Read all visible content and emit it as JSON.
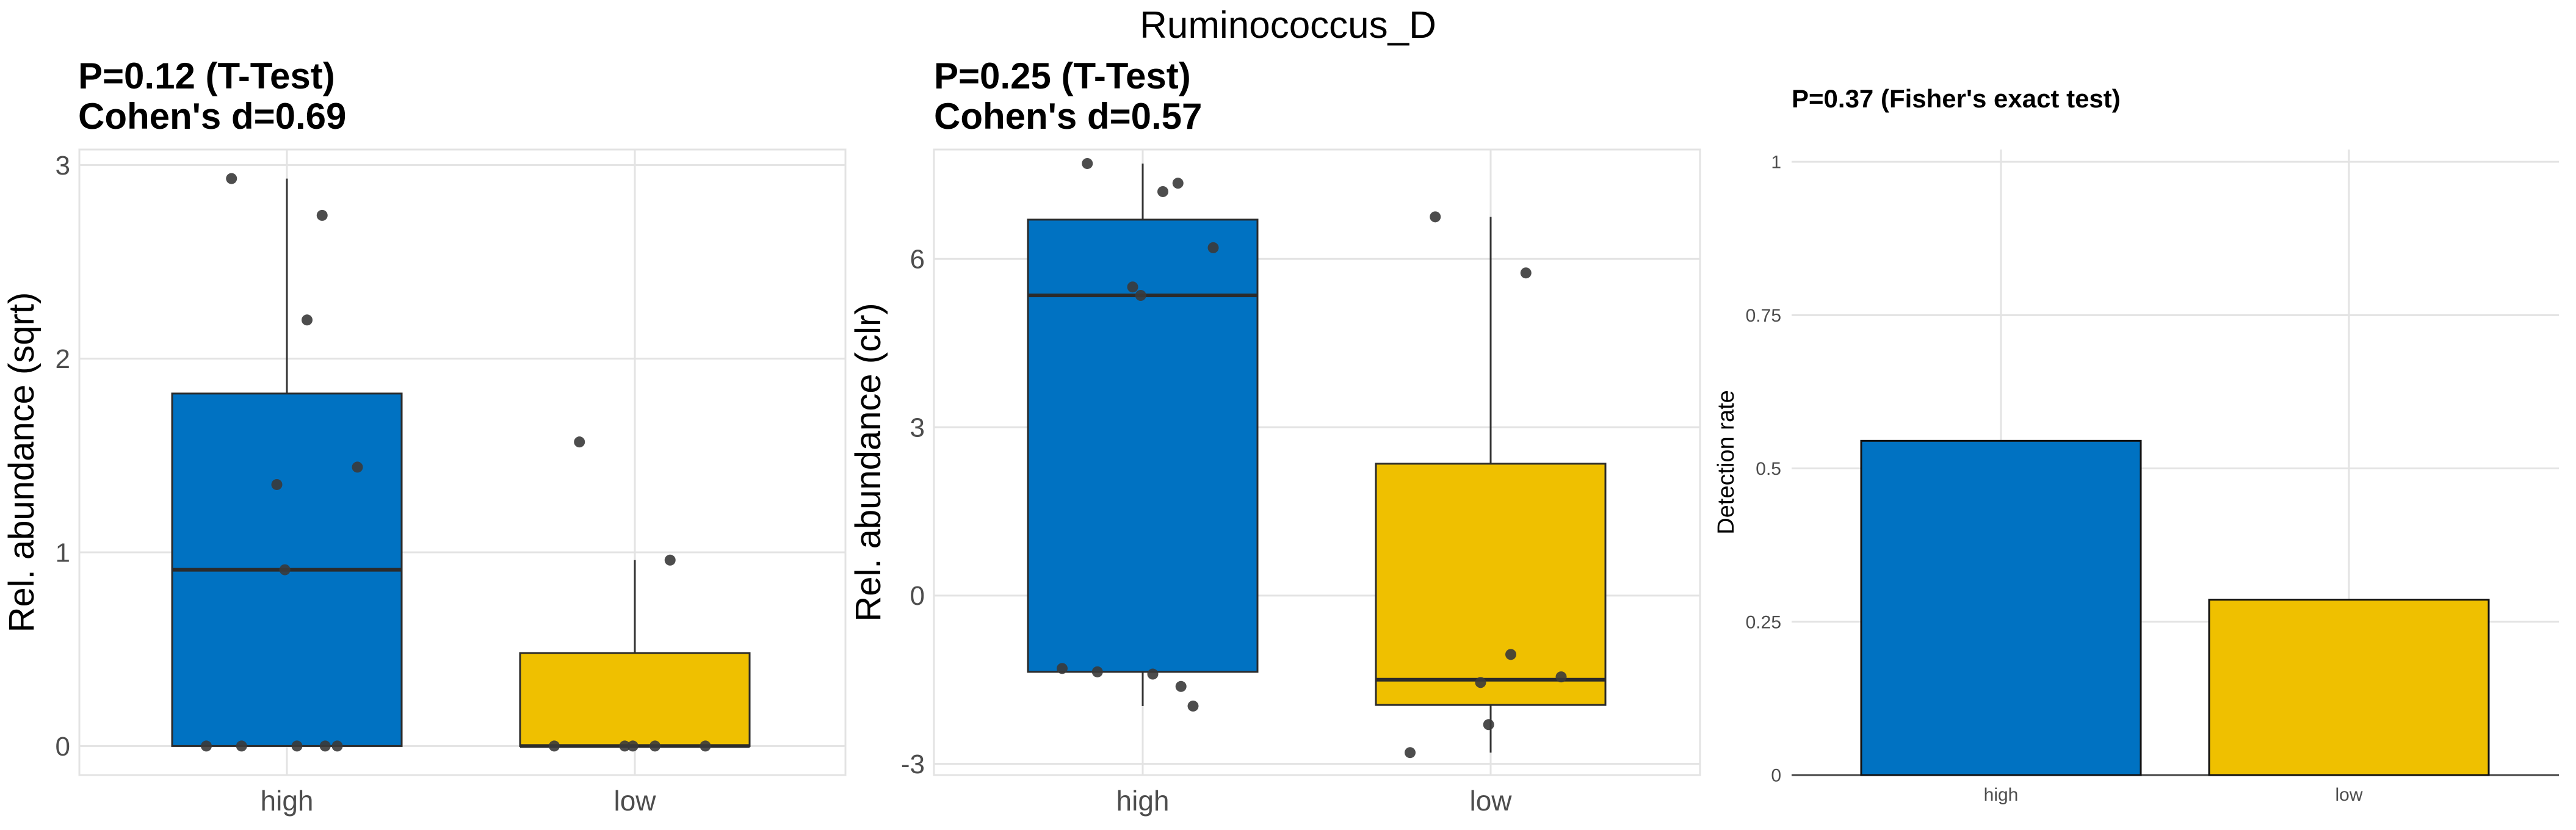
{
  "title": "Ruminococcus_D",
  "colors": {
    "high": "#0072C2",
    "low": "#EFC000",
    "grid": "#e3e3e3",
    "point": "#3a3a3a"
  },
  "chart_data": [
    {
      "type": "box",
      "title_lines": [
        "P=0.12 (T-Test)",
        "Cohen's d=0.69"
      ],
      "ylabel": "Rel. abundance (sqrt)",
      "ylim": [
        -0.15,
        3.08
      ],
      "yticks": [
        0,
        1,
        2,
        3
      ],
      "ytick_labels": [
        "0",
        "1",
        "2",
        "3"
      ],
      "categories": [
        "high",
        "low"
      ],
      "boxes": [
        {
          "group": "high",
          "min": 0,
          "q1": 0,
          "median": 0.91,
          "q3": 1.82,
          "max": 2.93
        },
        {
          "group": "low",
          "min": 0,
          "q1": 0,
          "median": 0.0,
          "q3": 0.48,
          "max": 0.96
        }
      ],
      "points": [
        {
          "group": "high",
          "values": [
            2.93,
            2.74,
            2.2,
            1.44,
            1.35,
            0.91,
            0,
            0,
            0,
            0,
            0
          ]
        },
        {
          "group": "low",
          "values": [
            1.57,
            0.96,
            0,
            0,
            0,
            0,
            0
          ]
        }
      ]
    },
    {
      "type": "box",
      "title_lines": [
        "P=0.25 (T-Test)",
        "Cohen's d=0.57"
      ],
      "ylabel": "Rel. abundance (clr)",
      "ylim": [
        -3.2,
        7.95
      ],
      "yticks": [
        -3,
        0,
        3,
        6
      ],
      "ytick_labels": [
        "-3",
        "0",
        "3",
        "6"
      ],
      "categories": [
        "high",
        "low"
      ],
      "boxes": [
        {
          "group": "high",
          "min": -1.97,
          "q1": -1.36,
          "median": 5.35,
          "q3": 6.7,
          "max": 7.7
        },
        {
          "group": "low",
          "min": -2.8,
          "q1": -1.95,
          "median": -1.5,
          "q3": 2.35,
          "max": 6.75
        }
      ],
      "points": [
        {
          "group": "high",
          "values": [
            7.7,
            7.35,
            7.2,
            6.2,
            5.5,
            5.35,
            -1.3,
            -1.36,
            -1.4,
            -1.62,
            -1.97
          ]
        },
        {
          "group": "low",
          "values": [
            6.75,
            5.75,
            -1.05,
            -1.45,
            -1.55,
            -2.3,
            -2.8
          ]
        }
      ]
    },
    {
      "type": "bar",
      "title_lines": [
        "P=0.37 (Fisher's exact test)"
      ],
      "ylabel": "Detection rate",
      "ylim": [
        0,
        1.02
      ],
      "yticks": [
        0,
        0.25,
        0.5,
        0.75,
        1
      ],
      "ytick_labels": [
        "0",
        "0.25",
        "0.5",
        "0.75",
        "1"
      ],
      "categories": [
        "high",
        "low"
      ],
      "values": [
        0.545,
        0.286
      ]
    }
  ]
}
